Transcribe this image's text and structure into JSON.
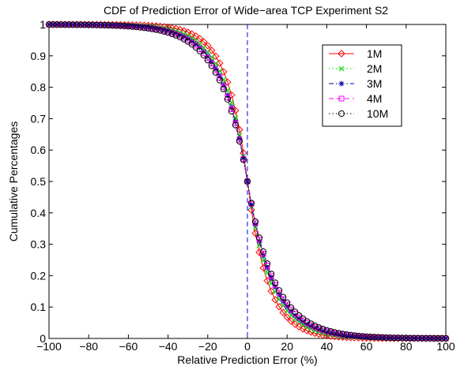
{
  "chart_data": {
    "type": "line",
    "title": "CDF of Prediction Error of Wide−area TCP Experiment S2",
    "xlabel": "Relative Prediction Error (%)",
    "ylabel": "Cumulative Percentages",
    "xlim": [
      -100,
      100
    ],
    "ylim": [
      0,
      1
    ],
    "xticks": [
      -100,
      -80,
      -60,
      -40,
      -20,
      0,
      20,
      40,
      60,
      80,
      100
    ],
    "xtick_labels": [
      "−100",
      "−80",
      "−60",
      "−40",
      "−20",
      "0",
      "20",
      "40",
      "60",
      "80",
      "100"
    ],
    "yticks": [
      0,
      0.1,
      0.2,
      0.3,
      0.4,
      0.5,
      0.6,
      0.7,
      0.8,
      0.9,
      1
    ],
    "ytick_labels": [
      "0",
      "0.1",
      "0.2",
      "0.3",
      "0.4",
      "0.5",
      "0.6",
      "0.7",
      "0.8",
      "0.9",
      "1"
    ],
    "grid": false,
    "legend_position": "top-right",
    "reference_line": {
      "x": 0,
      "color": "#0000ff",
      "style": "dashed"
    },
    "series": [
      {
        "name": "1M",
        "color": "#ff0000",
        "marker": "diamond",
        "line": "solid",
        "scale": 10
      },
      {
        "name": "2M",
        "color": "#00dd00",
        "marker": "x",
        "line": "dotted",
        "scale": 11.5
      },
      {
        "name": "3M",
        "color": "#0000aa",
        "marker": "star",
        "line": "dashdot",
        "scale": 12.5
      },
      {
        "name": "4M",
        "color": "#ff00ff",
        "marker": "square",
        "line": "dashed",
        "scale": 13
      },
      {
        "name": "10M",
        "color": "#000000",
        "marker": "circle",
        "line": "dotted",
        "scale": 13.5
      }
    ],
    "curve_model": "y = 0.5 - 0.5*sign(x)*(1 - exp(-|x|/scale)), sampled at x = -100..100 step 2"
  }
}
